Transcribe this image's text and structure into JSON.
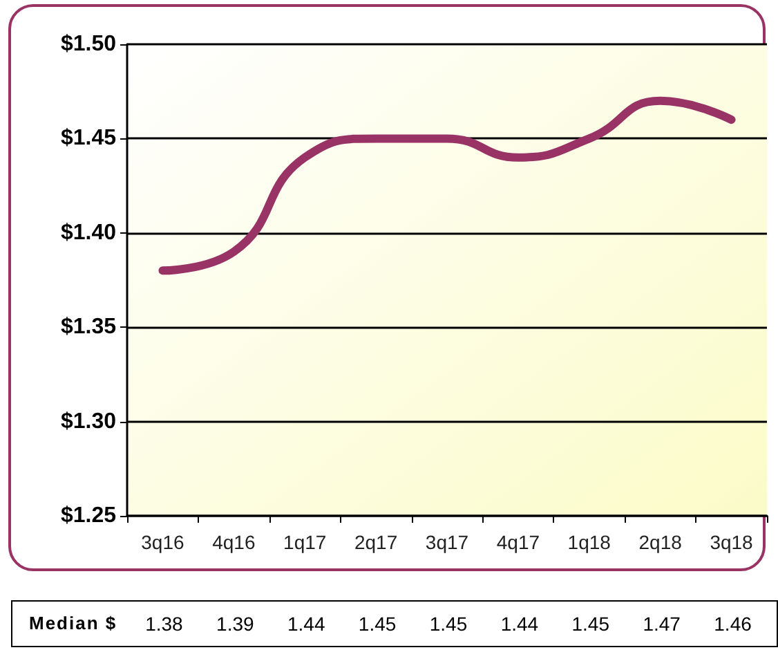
{
  "chart_data": {
    "type": "line",
    "categories": [
      "3q16",
      "4q16",
      "1q17",
      "2q17",
      "3q17",
      "4q17",
      "1q18",
      "2q18",
      "3q18"
    ],
    "series": [
      {
        "name": "Median $",
        "color": "#993366",
        "values": [
          1.38,
          1.39,
          1.44,
          1.45,
          1.45,
          1.44,
          1.45,
          1.47,
          1.46
        ]
      }
    ],
    "ylim": [
      1.25,
      1.5
    ],
    "yticks": [
      {
        "value": 1.25,
        "label": "$1.25"
      },
      {
        "value": 1.3,
        "label": "$1.30"
      },
      {
        "value": 1.35,
        "label": "$1.35"
      },
      {
        "value": 1.4,
        "label": "$1.40"
      },
      {
        "value": 1.45,
        "label": "$1.45"
      },
      {
        "value": 1.5,
        "label": "$1.50"
      }
    ],
    "grid": "y",
    "legend": false,
    "marker": "none",
    "line_style": "solid",
    "data_labels": true
  }
}
